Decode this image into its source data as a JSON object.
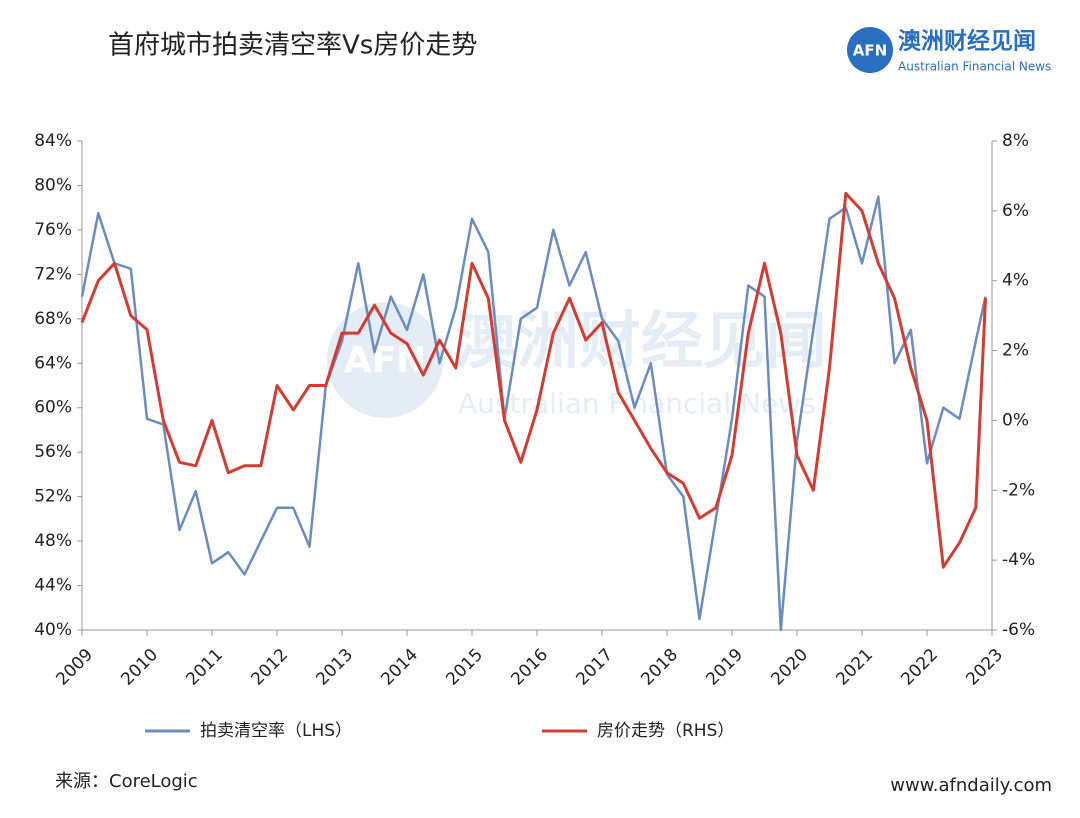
{
  "title": "首府城市拍卖清空率Vs房价走势",
  "logo": {
    "mark": "AFN",
    "name": "澳洲财经见闻",
    "subtitle": "Australian Financial News"
  },
  "source": "来源：CoreLogic",
  "website": "www.afndaily.com",
  "chart_data": {
    "type": "line",
    "x": [
      2009.0,
      2009.25,
      2009.5,
      2009.75,
      2010.0,
      2010.25,
      2010.5,
      2010.75,
      2011.0,
      2011.25,
      2011.5,
      2011.75,
      2012.0,
      2012.25,
      2012.5,
      2012.75,
      2013.0,
      2013.25,
      2013.5,
      2013.75,
      2014.0,
      2014.25,
      2014.5,
      2014.75,
      2015.0,
      2015.25,
      2015.5,
      2015.75,
      2016.0,
      2016.25,
      2016.5,
      2016.75,
      2017.0,
      2017.25,
      2017.5,
      2017.75,
      2018.0,
      2018.25,
      2018.5,
      2018.75,
      2019.0,
      2019.25,
      2019.5,
      2019.75,
      2020.0,
      2020.25,
      2020.5,
      2020.75,
      2021.0,
      2021.25,
      2021.5,
      2021.75,
      2022.0,
      2022.25,
      2022.5,
      2022.75,
      2022.9
    ],
    "series": [
      {
        "name": "拍卖清空率（LHS）",
        "color": "#6b8cbf",
        "axis": "y",
        "values": [
          70,
          77.5,
          73,
          72.5,
          59,
          58.5,
          49,
          52.5,
          46,
          47,
          45,
          48,
          51,
          51,
          47.5,
          62,
          66,
          73,
          65,
          70,
          67,
          72,
          64,
          69,
          77,
          74,
          59,
          68,
          69,
          76,
          71,
          74,
          68,
          66,
          60,
          64,
          54,
          52,
          41,
          50,
          59,
          71,
          70,
          40,
          57,
          67,
          77,
          78,
          73,
          79,
          64,
          67,
          55,
          60,
          59,
          66,
          70
        ]
      },
      {
        "name": "房价走势（RHS）",
        "color": "#d63b32",
        "axis": "y2",
        "values": [
          2.8,
          4.0,
          4.5,
          3.0,
          2.6,
          0,
          -1.2,
          -1.3,
          0,
          -1.5,
          -1.3,
          -1.3,
          1.0,
          0.3,
          1.0,
          1.0,
          2.5,
          2.5,
          3.3,
          2.5,
          2.2,
          1.3,
          2.3,
          1.5,
          4.5,
          3.5,
          0,
          -1.2,
          0.3,
          2.5,
          3.5,
          2.3,
          2.8,
          0.8,
          0.0,
          -0.8,
          -1.5,
          -1.8,
          -2.8,
          -2.5,
          -1.0,
          2.5,
          4.5,
          2.5,
          -1.0,
          -2.0,
          1.5,
          6.5,
          6.0,
          4.5,
          3.5,
          1.5,
          0,
          -4.2,
          -3.5,
          -2.5,
          3.5
        ]
      }
    ],
    "xlim": [
      2009,
      2023
    ],
    "xticks": [
      2009,
      2010,
      2011,
      2012,
      2013,
      2014,
      2015,
      2016,
      2017,
      2018,
      2019,
      2020,
      2021,
      2022,
      2023
    ],
    "ylim": [
      40,
      84
    ],
    "yticks": [
      {
        "value": 40,
        "label": "40%"
      },
      {
        "value": 44,
        "label": "44%"
      },
      {
        "value": 48,
        "label": "48%"
      },
      {
        "value": 52,
        "label": "52%"
      },
      {
        "value": 56,
        "label": "56%"
      },
      {
        "value": 60,
        "label": "60%"
      },
      {
        "value": 64,
        "label": "64%"
      },
      {
        "value": 68,
        "label": "68%"
      },
      {
        "value": 72,
        "label": "72%"
      },
      {
        "value": 76,
        "label": "76%"
      },
      {
        "value": 80,
        "label": "80%"
      },
      {
        "value": 84,
        "label": "84%"
      }
    ],
    "y2lim": [
      -6,
      8
    ],
    "y2ticks": [
      {
        "value": -6,
        "label": "-6%"
      },
      {
        "value": -4,
        "label": "-4%"
      },
      {
        "value": -2,
        "label": "-2%"
      },
      {
        "value": 0,
        "label": "0%"
      },
      {
        "value": 2,
        "label": "2%"
      },
      {
        "value": 4,
        "label": "4%"
      },
      {
        "value": 6,
        "label": "6%"
      },
      {
        "value": 8,
        "label": "8%"
      }
    ],
    "grid": false,
    "legend": "bottom"
  }
}
